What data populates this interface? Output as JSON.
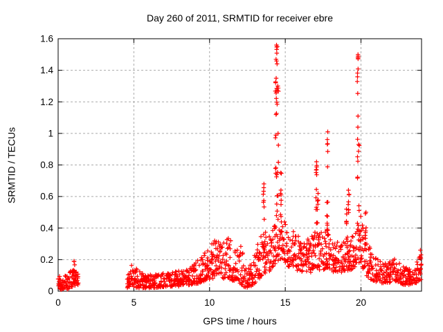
{
  "window": {
    "background": "#ffffff"
  },
  "chart_data": {
    "type": "scatter",
    "title": "Day 260 of 2011, SRMTID for receiver ebre",
    "xlabel": "GPS time / hours",
    "ylabel": "SRMTID / TECUs",
    "xlim": [
      0,
      24
    ],
    "ylim": [
      0,
      1.6
    ],
    "xticks": [
      0,
      5,
      10,
      15,
      20
    ],
    "yticks": [
      0,
      0.2,
      0.4,
      0.6,
      0.8,
      1,
      1.2,
      1.4,
      1.6
    ],
    "grid": {
      "visible": true,
      "style": "dashed",
      "color": "#a9a9a9",
      "dash": "3,3"
    },
    "frame_color": "#000000",
    "legend": null,
    "series": [
      {
        "name": "SRMTID",
        "marker": "plus",
        "color": "#ff0000",
        "marker_size": 6.4,
        "marker_stroke": 1.2,
        "seed": 1337,
        "epoch_dt": 0.03,
        "max_points_per_epoch": 3,
        "low_bias_exponent": 1.4,
        "gaps": [
          [
            1.35,
            4.55
          ]
        ],
        "envelope": [
          [
            0.0,
            0.01,
            0.1
          ],
          [
            0.6,
            0.01,
            0.12
          ],
          [
            1.0,
            0.03,
            0.16
          ],
          [
            1.2,
            0.04,
            0.14
          ],
          [
            1.35,
            0.02,
            0.09
          ],
          [
            4.55,
            0.02,
            0.12
          ],
          [
            4.9,
            0.03,
            0.17
          ],
          [
            5.3,
            0.02,
            0.14
          ],
          [
            5.8,
            0.02,
            0.1
          ],
          [
            6.5,
            0.02,
            0.11
          ],
          [
            7.2,
            0.03,
            0.12
          ],
          [
            8.0,
            0.03,
            0.13
          ],
          [
            8.7,
            0.04,
            0.16
          ],
          [
            9.3,
            0.05,
            0.2
          ],
          [
            9.8,
            0.07,
            0.26
          ],
          [
            10.3,
            0.08,
            0.33
          ],
          [
            10.8,
            0.08,
            0.3
          ],
          [
            11.25,
            0.08,
            0.35
          ],
          [
            11.7,
            0.06,
            0.28
          ],
          [
            12.05,
            0.05,
            0.36
          ],
          [
            12.35,
            0.02,
            0.14
          ],
          [
            12.7,
            0.03,
            0.2
          ],
          [
            13.1,
            0.06,
            0.28
          ],
          [
            13.55,
            0.1,
            0.38
          ],
          [
            13.9,
            0.12,
            0.4
          ],
          [
            14.2,
            0.15,
            0.48
          ],
          [
            14.55,
            0.2,
            0.52
          ],
          [
            14.9,
            0.18,
            0.46
          ],
          [
            15.3,
            0.15,
            0.4
          ],
          [
            15.8,
            0.13,
            0.36
          ],
          [
            16.3,
            0.12,
            0.33
          ],
          [
            16.8,
            0.12,
            0.36
          ],
          [
            17.1,
            0.14,
            0.4
          ],
          [
            17.5,
            0.13,
            0.36
          ],
          [
            17.8,
            0.15,
            0.4
          ],
          [
            18.2,
            0.12,
            0.33
          ],
          [
            18.7,
            0.12,
            0.3
          ],
          [
            19.1,
            0.13,
            0.34
          ],
          [
            19.5,
            0.14,
            0.36
          ],
          [
            19.85,
            0.18,
            0.5
          ],
          [
            20.1,
            0.14,
            0.45
          ],
          [
            20.35,
            0.1,
            0.35
          ],
          [
            20.7,
            0.07,
            0.24
          ],
          [
            21.2,
            0.05,
            0.2
          ],
          [
            21.7,
            0.05,
            0.18
          ],
          [
            22.2,
            0.06,
            0.22
          ],
          [
            22.7,
            0.04,
            0.16
          ],
          [
            23.2,
            0.04,
            0.14
          ],
          [
            23.6,
            0.05,
            0.17
          ],
          [
            23.85,
            0.06,
            0.22
          ],
          [
            24.0,
            0.07,
            0.27
          ]
        ],
        "spikes": [
          [
            1.07,
            0.08,
            0.19,
            5,
            1
          ],
          [
            13.58,
            0.28,
            0.68,
            10,
            1
          ],
          [
            14.38,
            0.5,
            1.47,
            13,
            1.4
          ],
          [
            14.45,
            0.55,
            1.56,
            18,
            1.8
          ],
          [
            14.52,
            0.45,
            1.3,
            9,
            1
          ],
          [
            14.72,
            0.38,
            0.75,
            9,
            1
          ],
          [
            17.05,
            0.38,
            0.82,
            13,
            1.2
          ],
          [
            17.15,
            0.35,
            0.62,
            7,
            1
          ],
          [
            17.78,
            0.35,
            1.01,
            13,
            1
          ],
          [
            19.07,
            0.33,
            0.52,
            6,
            1
          ],
          [
            19.18,
            0.45,
            0.64,
            8,
            1.3
          ],
          [
            19.78,
            0.45,
            1.5,
            19,
            1.7
          ],
          [
            19.86,
            0.3,
            0.93,
            9,
            1
          ],
          [
            20.32,
            0.28,
            0.5,
            7,
            1
          ],
          [
            23.95,
            0.1,
            0.26,
            6,
            1
          ]
        ]
      }
    ]
  }
}
